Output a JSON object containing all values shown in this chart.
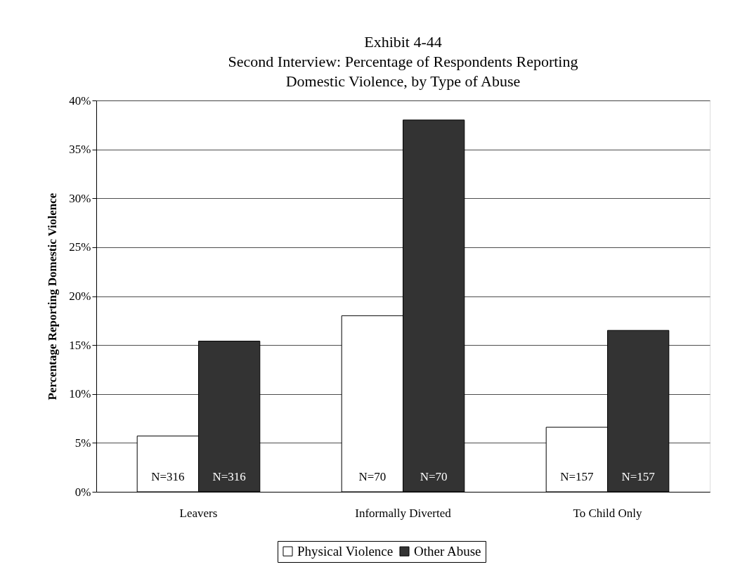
{
  "chart_data": {
    "type": "bar",
    "title": "Exhibit 4-44\nSecond Interview: Percentage of Respondents Reporting\nDomestic Violence, by Type of Abuse",
    "ylabel": "Percentage Reporting Domestic Violence",
    "categories": [
      "Leavers",
      "Informally Diverted",
      "To Child Only"
    ],
    "series": [
      {
        "name": "Physical Violence",
        "color": "#ffffff",
        "values": [
          5.7,
          18.0,
          6.6
        ]
      },
      {
        "name": "Other Abuse",
        "color": "#333333",
        "values": [
          15.4,
          38.0,
          16.5
        ]
      }
    ],
    "annotations": [
      {
        "text": "N=316",
        "x": "Leavers",
        "y": 0
      },
      {
        "text": "N=316",
        "x": "Leavers",
        "y": 0
      },
      {
        "text": "N=70",
        "x": "Informally Diverted",
        "y": 0
      },
      {
        "text": "N=70",
        "x": "Informally Diverted",
        "y": 0
      },
      {
        "text": "N=157",
        "x": "To Child Only",
        "y": 0
      },
      {
        "text": "N=157",
        "x": "To Child Only",
        "y": 0
      }
    ],
    "ylim": [
      0,
      40
    ],
    "yticks": [
      {
        "value": 0,
        "label": "0%"
      },
      {
        "value": 5,
        "label": "5%"
      },
      {
        "value": 10,
        "label": "10%"
      },
      {
        "value": 15,
        "label": "15%"
      },
      {
        "value": 20,
        "label": "20%"
      },
      {
        "value": 25,
        "label": "25%"
      },
      {
        "value": 30,
        "label": "30%"
      },
      {
        "value": 35,
        "label": "35%"
      },
      {
        "value": 40,
        "label": "40%"
      }
    ],
    "grid": "y",
    "legend": "bottom"
  }
}
